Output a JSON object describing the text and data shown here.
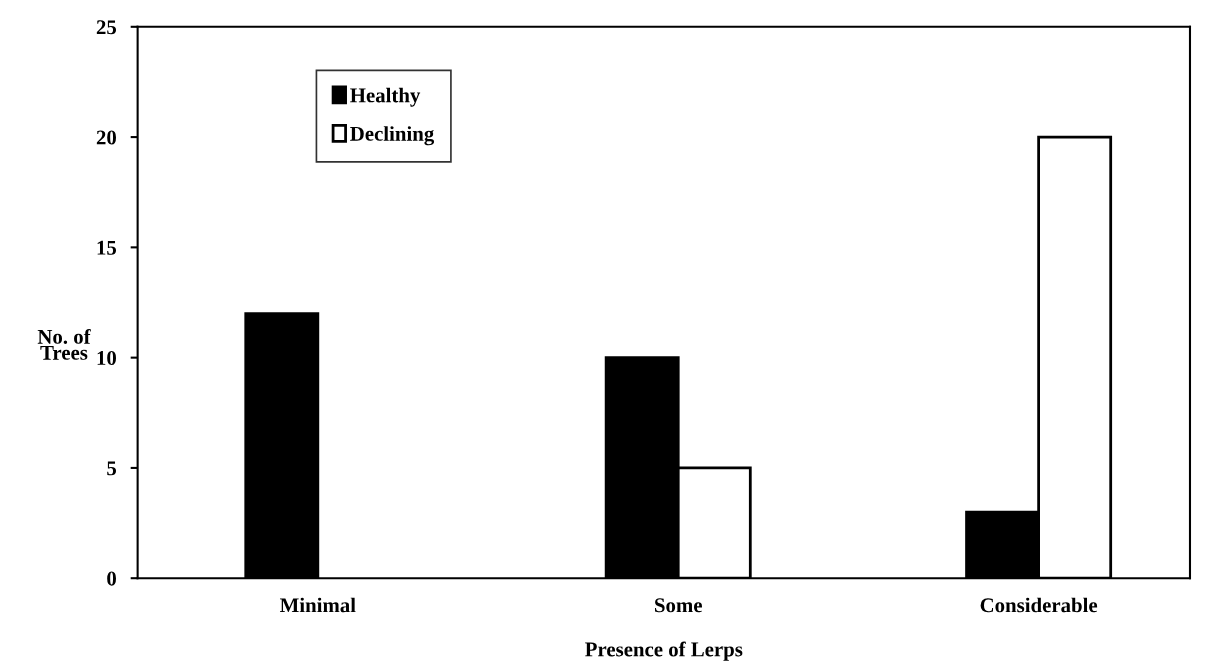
{
  "chart_data": {
    "type": "bar",
    "xlabel": "Presence of Lerps",
    "ylabel": "No. of\nTrees",
    "categories": [
      "Minimal",
      "Some",
      "Considerable"
    ],
    "series": [
      {
        "name": "Healthy",
        "color": "#000000",
        "values": [
          12,
          10,
          3
        ]
      },
      {
        "name": "Declining",
        "color": "#ffffff",
        "values": [
          null,
          5,
          20
        ]
      }
    ],
    "ylim": [
      0,
      25
    ],
    "yticks": [
      0,
      5,
      10,
      15,
      20,
      25
    ],
    "grid": false,
    "legend": "top left"
  }
}
